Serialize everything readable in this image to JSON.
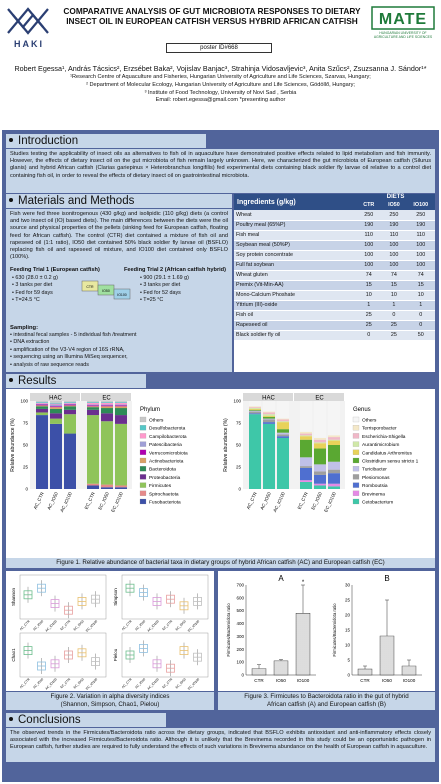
{
  "header": {
    "title_line1": "COMPARATIVE ANALYSIS OF GUT MICROBIOTA RESPONSES TO DIETARY",
    "title_line2": "INSECT OIL IN EUROPEAN CATFISH VERSUS HYBRID AFRICAN CATFISH",
    "poster_id": "poster ID#668",
    "left_logo_text": "HAKI",
    "right_logo_text": "MATE",
    "right_logo_sub": "HUNGARIAN UNIVERSITY OF AGRICULTURE AND LIFE SCIENCES"
  },
  "authors": {
    "names": "Robert Egessa¹, András Tácsics², Erzsébet Baka², Vojislav Banjac³, Strahinja Vidosavljevic³, Anita Szűcs², Zsuzsanna J. Sándor¹*",
    "aff1": "¹Research Centre of Aquaculture and Fisheries, Hungarian University of Agriculture and Life Sciences, Szarvas, Hungary;",
    "aff2": "² Department of Molecular Ecology, Hungarian University of Agriculture and Life Sciences, Gödöllő, Hungary;",
    "aff3": "³ Institute of Food Technology, University of Novi Sad , Serbia",
    "email": "Email: robert.egessa@gmail.com *presenting author"
  },
  "intro": {
    "heading": "Introduction",
    "text": "Studies testing the applicability of insect oils as alternatives to fish oil in aquaculture have demonstrated positive effects related to lipid metabolism and fish immunity. However, the effects of dietary insect oil on the gut microbiota of fish remain largely unknown. Here, we characterized the gut microbiota of European catfish (Silurus glanis) and hybrid African catfish (Clarias gariepinus × Heterobranchus longifilis) fed experimental diets containing black soldier fly larvae oil relative to a control diet containing fish oil, in order to reveal the effects of dietary insect oil on gastrointestinal microbiota."
  },
  "methods": {
    "heading": "Materials and Methods",
    "text": "Fish were fed three isonitrogenous (430 g/kg) and isolipidic (110 g/kg) diets (a control and two insect oil (IO) based diets). The main differences between the diets were the oil source and physical properties of the pellets (sinking feed for European catfish, floating feed for African catfish). The control (CTR) diet contained a mixture of fish oil and rapeseed oil (1:1 ratio), IO50 diet contained 50% black soldier fly larvae oil (BSFLO) replacing fish oil and rapeseed oil mixture, and IO100 diet contained only BSFLO (100%).",
    "trial1_title": "Feeding Trial 1 (European catfish)",
    "trial1": [
      "630 (28.0 ± 0.2 g)",
      "3 tanks per diet",
      "Fed for 59 days",
      "T=24.5 °C"
    ],
    "trial2_title": "Feeding Trial 2 (African catfish hybrid)",
    "trial2": [
      "900 (29.1 ± 1.69 g)",
      "3 tanks per diet",
      "Fed for 52 days",
      "T=25 °C"
    ],
    "sampling_title": "Sampling:",
    "sampling": [
      "intestinal fecal samples - 5 individual fish /treatment",
      "DNA extraction",
      "amplification of the V3-V4 region of 16S rRNA,",
      "sequencing using an Illumina MiSeq sequencer,",
      "analysis of raw sequence reads"
    ],
    "tank_labels": [
      "CTR",
      "IO50",
      "IO100"
    ]
  },
  "table": {
    "col0": "Ingredients (g/kg)",
    "group": "DIETS",
    "cols": [
      "CTR",
      "IO50",
      "IO100"
    ],
    "rows": [
      [
        "Wheat",
        "250",
        "250",
        "250"
      ],
      [
        "Poultry meal (65%P)",
        "190",
        "190",
        "190"
      ],
      [
        "Fish meal",
        "110",
        "110",
        "110"
      ],
      [
        "Soybean meal (50%P)",
        "100",
        "100",
        "100"
      ],
      [
        "Soy protein concentrate",
        "100",
        "100",
        "100"
      ],
      [
        "Full fat soybean",
        "100",
        "100",
        "100"
      ],
      [
        "Wheat gluten",
        "74",
        "74",
        "74"
      ],
      [
        "Premix (Vit-Min-AA)",
        "15",
        "15",
        "15"
      ],
      [
        "Mono-Calcium Phoshate",
        "10",
        "10",
        "10"
      ],
      [
        "Yttrium (III)-oxide",
        "1",
        "1",
        "1"
      ],
      [
        "Fish oil",
        "25",
        "0",
        "0"
      ],
      [
        "Rapeseed oil",
        "25",
        "25",
        "0"
      ],
      [
        "Black soldier fly oil",
        "0",
        "25",
        "50"
      ]
    ]
  },
  "results": {
    "heading": "Results",
    "fig1_caption": "Figure 1. Relative abundance of bacterial taxa in dietary groups of hybrid African catfish (AC) and European catfish (EC)",
    "fig2_caption_l1": "Figure 2. Variation in alpha diversity indices",
    "fig2_caption_l2": "(Shannon, Simpson, Chao1, Pielou)",
    "fig3_caption_l1": "Figure 3. Firmicutes to Bacteroidota ratio in the gut of hybrid",
    "fig3_caption_l2": "African catfish (A) and European catfish (B)"
  },
  "chart_data": [
    {
      "type": "bar",
      "title": "",
      "stacked": true,
      "ylabel": "Relative abundance (%)",
      "ylim": [
        0,
        100
      ],
      "yticks": [
        "0",
        "25",
        "50",
        "75",
        "100"
      ],
      "facets": [
        "HAC",
        "EC"
      ],
      "categories": [
        "AC_CTR",
        "AC_IO50",
        "AC_IO100",
        "EC_CTR",
        "EC_IO50",
        "EC_IO100"
      ],
      "legend_title": "Phylum",
      "series": [
        {
          "name": "Fusobacteriota",
          "color": "#3c50a8",
          "values": [
            84,
            74,
            63,
            4,
            2,
            2
          ]
        },
        {
          "name": "Spirochaetota",
          "color": "#e58a8a",
          "values": [
            0,
            0,
            0,
            2,
            3,
            2
          ]
        },
        {
          "name": "Firmicutes",
          "color": "#8fc45a",
          "values": [
            3,
            6,
            22,
            78,
            72,
            70
          ]
        },
        {
          "name": "Proteobacteria",
          "color": "#6b2f8f",
          "values": [
            4,
            6,
            5,
            6,
            9,
            10
          ]
        },
        {
          "name": "Bacteroidota",
          "color": "#2e8b57",
          "values": [
            3,
            5,
            4,
            3,
            6,
            8
          ]
        },
        {
          "name": "Actinobacteriota",
          "color": "#d9a066",
          "values": [
            1,
            2,
            1,
            1,
            2,
            2
          ]
        },
        {
          "name": "Verrucomicrobiota",
          "color": "#b000b0",
          "values": [
            1,
            1,
            1,
            1,
            1,
            1
          ]
        },
        {
          "name": "Patescibacteria",
          "color": "#9f9fd6",
          "values": [
            1,
            2,
            1,
            1,
            1,
            1
          ]
        },
        {
          "name": "Campilobacterota",
          "color": "#ff99cc",
          "values": [
            1,
            1,
            1,
            2,
            2,
            2
          ]
        },
        {
          "name": "Desulfobacterota",
          "color": "#55c7c7",
          "values": [
            1,
            1,
            1,
            1,
            1,
            1
          ]
        },
        {
          "name": "Others",
          "color": "#c8c8c8",
          "values": [
            1,
            2,
            1,
            1,
            1,
            1
          ]
        }
      ]
    },
    {
      "type": "bar",
      "title": "",
      "stacked": true,
      "ylabel": "Relative abundance (%)",
      "ylim": [
        0,
        100
      ],
      "yticks": [
        "0",
        "25",
        "50",
        "75",
        "100"
      ],
      "facets": [
        "HAC",
        "EC"
      ],
      "categories": [
        "AC_CTR",
        "AC_IO50",
        "AC_IO100",
        "EC_CTR",
        "EC_IO50",
        "EC_IO100"
      ],
      "legend_title": "Genus",
      "series": [
        {
          "name": "Cetobacterium",
          "color": "#3ec7a8",
          "values": [
            85,
            74,
            58,
            8,
            4,
            3
          ]
        },
        {
          "name": "Brevinema",
          "color": "#e58ae5",
          "values": [
            0,
            0,
            0,
            2,
            2,
            3
          ]
        },
        {
          "name": "Romboutsia",
          "color": "#4f6fd0",
          "values": [
            1,
            2,
            2,
            14,
            10,
            12
          ]
        },
        {
          "name": "Plesiomonas",
          "color": "#9e9e9e",
          "values": [
            2,
            3,
            2,
            2,
            4,
            4
          ]
        },
        {
          "name": "Turicibacter",
          "color": "#c0c0e8",
          "values": [
            1,
            1,
            2,
            10,
            8,
            9
          ]
        },
        {
          "name": "Clostridium sensu stricto 1",
          "color": "#5aa832",
          "values": [
            1,
            2,
            4,
            20,
            18,
            19
          ]
        },
        {
          "name": "Candidatus Arthromitus",
          "color": "#e8d25a",
          "values": [
            1,
            1,
            8,
            4,
            6,
            5
          ]
        },
        {
          "name": "Aurantimicrobium",
          "color": "#d0e8a8",
          "values": [
            1,
            2,
            1,
            1,
            1,
            1
          ]
        },
        {
          "name": "Escherichia-Shigella",
          "color": "#f0b8c8",
          "values": [
            1,
            2,
            2,
            2,
            3,
            3
          ]
        },
        {
          "name": "Terrisporobacter",
          "color": "#f4e8c8",
          "values": [
            1,
            1,
            1,
            2,
            2,
            2
          ]
        },
        {
          "name": "Others",
          "color": "#f5f5f5",
          "values": [
            6,
            12,
            20,
            35,
            42,
            39
          ]
        }
      ]
    },
    {
      "type": "box",
      "title": "",
      "panels": [
        "Shannon",
        "Simpson",
        "Chao1",
        "Pielou"
      ],
      "groups": [
        "AC_CTR",
        "AC_IO50",
        "AC_IO100",
        "EC_CTR",
        "EC_IO50",
        "EC_IO100"
      ],
      "colors": [
        "#6fbf8f",
        "#8fc0e0",
        "#d99ad9",
        "#e8a0a0",
        "#e8c070",
        "#c0c0c0"
      ],
      "note": "values not printed; relative positions only"
    },
    {
      "type": "bar",
      "title": "",
      "panels": [
        {
          "label": "A",
          "categories": [
            "CTR",
            "IO50",
            "IO100"
          ],
          "values": [
            50,
            110,
            480
          ],
          "err": [
            30,
            10,
            220
          ],
          "ylim": [
            0,
            700
          ],
          "yticks": [
            "0",
            "100",
            "200",
            "300",
            "400",
            "500",
            "600",
            "700"
          ],
          "ylabel": "Firmicutes/Bacteroidota ratio",
          "sig": [
            "",
            "",
            "*"
          ]
        },
        {
          "label": "B",
          "categories": [
            "CTR",
            "IO50",
            "IO100"
          ],
          "values": [
            2,
            13,
            3
          ],
          "err": [
            1,
            12,
            2
          ],
          "ylim": [
            0,
            30
          ],
          "yticks": [
            "0",
            "5",
            "10",
            "15",
            "20",
            "25",
            "30"
          ],
          "ylabel": "Firmicutes/Bacteroidota ratio",
          "sig": [
            "",
            "",
            ""
          ]
        }
      ]
    }
  ],
  "conclusions": {
    "heading": "Conclusions",
    "text": "The observed trends in the Firmicutes/Bacteroidota ratio across the dietary groups, indicated that BSFLO exhibits antioxidant and anti-inflammatory effects closely associated with the increased Firmicutes/Bacteroidota ratio. Although it is unlikely that the Brevinema recorded in this study could be an opportunistic pathogen in European catfish, further studies are required to fully understand the effects of such variations in Brevinema abundance on the health of European catfish in aquaculture."
  },
  "colors": {
    "frame": "#51649b",
    "panel": "#c6d6e8",
    "table_header": "#2f4f87"
  }
}
